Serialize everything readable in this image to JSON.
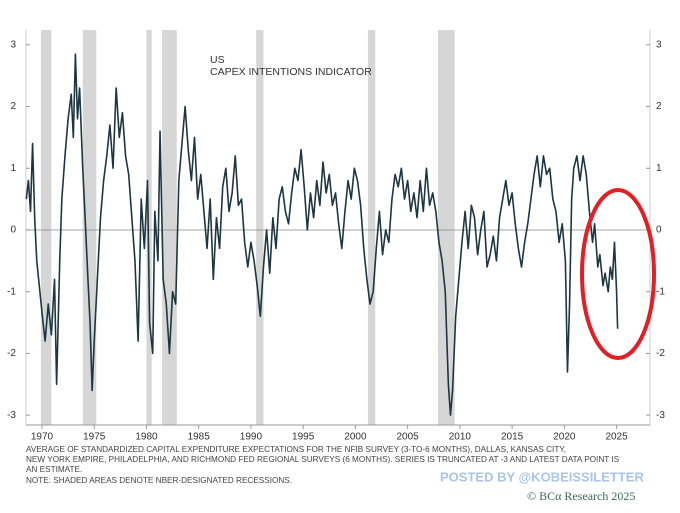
{
  "chart_data": {
    "type": "line",
    "title": "US",
    "subtitle": "CAPEX INTENTIONS INDICATOR",
    "x": [
      1968.5,
      1968.7,
      1968.9,
      1969.1,
      1969.3,
      1969.5,
      1969.8,
      1970.1,
      1970.3,
      1970.6,
      1970.9,
      1971.2,
      1971.4,
      1971.7,
      1971.9,
      1972.2,
      1972.5,
      1972.8,
      1973.0,
      1973.2,
      1973.4,
      1973.6,
      1973.9,
      1974.1,
      1974.4,
      1974.6,
      1974.8,
      1975.0,
      1975.3,
      1975.6,
      1975.9,
      1976.2,
      1976.5,
      1976.8,
      1977.1,
      1977.4,
      1977.7,
      1978.0,
      1978.3,
      1978.6,
      1978.9,
      1979.2,
      1979.5,
      1979.8,
      1980.1,
      1980.3,
      1980.6,
      1980.8,
      1981.1,
      1981.3,
      1981.6,
      1981.9,
      1982.2,
      1982.5,
      1982.8,
      1983.1,
      1983.4,
      1983.7,
      1984.0,
      1984.3,
      1984.6,
      1984.9,
      1985.2,
      1985.5,
      1985.8,
      1986.1,
      1986.4,
      1986.7,
      1987.0,
      1987.3,
      1987.6,
      1987.9,
      1988.2,
      1988.5,
      1988.8,
      1989.1,
      1989.4,
      1989.7,
      1990.0,
      1990.3,
      1990.6,
      1990.9,
      1991.2,
      1991.5,
      1991.8,
      1992.1,
      1992.4,
      1992.7,
      1993.0,
      1993.3,
      1993.6,
      1993.9,
      1994.2,
      1994.5,
      1994.8,
      1995.1,
      1995.4,
      1995.7,
      1996.0,
      1996.3,
      1996.6,
      1996.9,
      1997.2,
      1997.5,
      1997.8,
      1998.1,
      1998.4,
      1998.7,
      1999.0,
      1999.3,
      1999.6,
      1999.9,
      2000.2,
      2000.5,
      2000.8,
      2001.1,
      2001.4,
      2001.7,
      2002.0,
      2002.3,
      2002.6,
      2002.9,
      2003.2,
      2003.5,
      2003.8,
      2004.1,
      2004.4,
      2004.7,
      2005.0,
      2005.3,
      2005.6,
      2005.9,
      2006.2,
      2006.5,
      2006.8,
      2007.1,
      2007.4,
      2007.7,
      2008.0,
      2008.3,
      2008.6,
      2008.9,
      2009.1,
      2009.3,
      2009.6,
      2009.9,
      2010.2,
      2010.5,
      2010.8,
      2011.1,
      2011.4,
      2011.7,
      2012.0,
      2012.3,
      2012.6,
      2012.9,
      2013.2,
      2013.5,
      2013.8,
      2014.1,
      2014.4,
      2014.7,
      2015.0,
      2015.3,
      2015.6,
      2015.9,
      2016.2,
      2016.5,
      2016.8,
      2017.1,
      2017.4,
      2017.7,
      2018.0,
      2018.3,
      2018.6,
      2018.9,
      2019.2,
      2019.5,
      2019.8,
      2020.1,
      2020.3,
      2020.5,
      2020.7,
      2020.9,
      2021.2,
      2021.5,
      2021.8,
      2022.1,
      2022.4,
      2022.7,
      2022.9,
      2023.2,
      2023.4,
      2023.7,
      2023.9,
      2024.2,
      2024.4,
      2024.6,
      2024.8,
      2025.0,
      2025.1
    ],
    "series": [
      {
        "color": "#1d3640",
        "values": [
          0.5,
          0.8,
          0.3,
          1.4,
          0.2,
          -0.5,
          -1.0,
          -1.5,
          -1.8,
          -1.2,
          -1.7,
          -0.8,
          -2.5,
          -0.5,
          0.5,
          1.2,
          1.8,
          2.2,
          1.5,
          2.85,
          1.8,
          2.3,
          1.0,
          0.3,
          -0.8,
          -1.5,
          -2.6,
          -1.8,
          -0.8,
          0.2,
          0.8,
          1.2,
          1.7,
          1.0,
          2.3,
          1.5,
          1.9,
          1.2,
          0.9,
          0.2,
          -0.5,
          -1.8,
          0.5,
          -0.3,
          0.8,
          -1.5,
          -2.0,
          0.3,
          -0.5,
          1.6,
          -0.8,
          -1.2,
          -2.0,
          -1.0,
          -1.2,
          0.8,
          1.4,
          2.0,
          1.3,
          0.8,
          1.5,
          0.5,
          0.9,
          0.3,
          -0.3,
          0.5,
          -0.8,
          0.2,
          -0.3,
          0.7,
          1.0,
          0.3,
          0.6,
          1.2,
          0.4,
          0.5,
          -0.2,
          -0.6,
          -0.2,
          -0.5,
          -0.9,
          -1.4,
          -0.6,
          0.0,
          -0.7,
          0.2,
          -0.3,
          0.5,
          0.7,
          0.3,
          0.1,
          0.6,
          1.0,
          0.8,
          1.3,
          0.7,
          0.0,
          0.6,
          0.2,
          0.8,
          0.4,
          1.1,
          0.6,
          0.9,
          0.4,
          0.6,
          0.1,
          -0.3,
          0.3,
          0.8,
          0.5,
          1.0,
          0.8,
          0.4,
          -0.3,
          -0.8,
          -1.2,
          -1.0,
          -0.3,
          0.3,
          -0.4,
          0.0,
          -0.2,
          0.5,
          0.9,
          0.7,
          1.0,
          0.5,
          0.8,
          0.3,
          0.6,
          0.2,
          0.8,
          0.3,
          1.0,
          0.4,
          0.6,
          0.3,
          -0.2,
          -0.5,
          -1.0,
          -2.5,
          -3.0,
          -2.6,
          -1.4,
          -0.8,
          -0.2,
          0.3,
          -0.3,
          0.4,
          0.2,
          -0.4,
          0.0,
          0.3,
          -0.6,
          -0.4,
          -0.1,
          -0.5,
          0.2,
          0.5,
          0.8,
          0.4,
          0.6,
          0.1,
          -0.3,
          -0.6,
          -0.2,
          0.1,
          0.5,
          0.9,
          1.2,
          0.7,
          1.2,
          0.9,
          1.0,
          0.5,
          0.3,
          -0.2,
          0.1,
          -0.5,
          -2.3,
          -1.2,
          0.5,
          1.0,
          1.2,
          0.8,
          1.2,
          0.9,
          0.3,
          -0.2,
          0.1,
          -0.6,
          -0.4,
          -0.9,
          -0.7,
          -1.0,
          -0.6,
          -0.8,
          -0.2,
          -1.0,
          -1.6
        ]
      }
    ],
    "shaded_periods": [
      [
        1969.9,
        1970.9
      ],
      [
        1973.9,
        1975.2
      ],
      [
        1980.0,
        1980.5
      ],
      [
        1981.5,
        1982.9
      ],
      [
        1990.5,
        1991.2
      ],
      [
        2001.2,
        2001.9
      ],
      [
        2007.9,
        2009.5
      ]
    ],
    "shade_color": "#d6d6d6",
    "xlim": [
      1968.47,
      2028.2
    ],
    "xticks": [
      1970,
      1975,
      1980,
      1985,
      1990,
      1995,
      2000,
      2005,
      2010,
      2015,
      2020,
      2025
    ],
    "ylim": [
      -3.16,
      3.24
    ],
    "yticks": [
      -3,
      -2,
      -1,
      0,
      1,
      2,
      3
    ],
    "notes": [
      "AVERAGE OF STANDARDIZED CAPITAL EXPENDITURE EXPECTATIONS FOR THE NFIB SURVEY (3-TO-6 MONTHS), DALLAS, KANSAS CITY,",
      "NEW YORK EMPIRE, PHILADELPHIA, AND RICHMOND FED REGIONAL SURVEYS (6 MONTHS). SERIES IS TRUNCATED AT -3 AND LATEST DATA POINT IS",
      "AN ESTIMATE.",
      "NOTE: SHADED AREAS DENOTE NBER-DESIGNATED RECESSIONS."
    ],
    "watermark": "POSTED BY @KOBEISSILETTER",
    "source": "© BCα Research 2025"
  }
}
